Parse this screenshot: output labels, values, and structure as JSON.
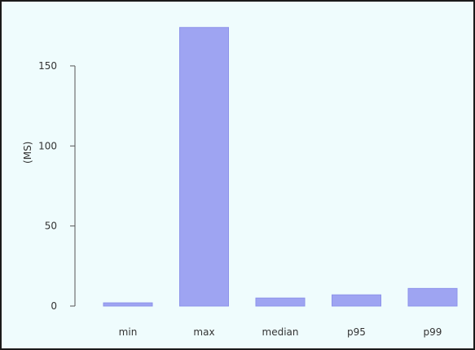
{
  "chart_data": {
    "type": "bar",
    "categories": [
      "min",
      "max",
      "median",
      "p95",
      "p99"
    ],
    "values": [
      2,
      174,
      5,
      7,
      11
    ],
    "title": "",
    "xlabel": "",
    "ylabel": "(MS)",
    "ylim": [
      0,
      175
    ],
    "yticks": [
      0,
      50,
      100,
      150
    ],
    "grid": false,
    "bar_color": "#9ea4f2",
    "background_color": "#effcfd"
  }
}
